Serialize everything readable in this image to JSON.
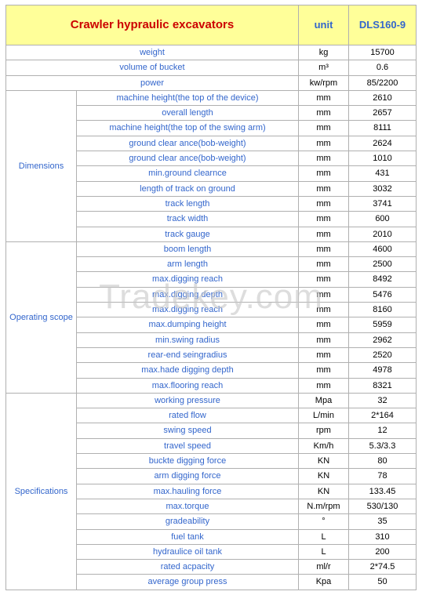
{
  "watermark": "Tradekey.com",
  "header": {
    "title": "Crawler hypraulic excavators",
    "unit_label": "unit",
    "model_label": "DLS160-9"
  },
  "colors": {
    "header_bg": "#ffff99",
    "header_title": "#cc0000",
    "header_small": "#3366cc",
    "param_text": "#3366cc",
    "value_text": "#000000",
    "border": "#b0b0b0",
    "watermark": "#c8c8c8"
  },
  "top_rows": [
    {
      "param": "weight",
      "unit": "kg",
      "value": "15700"
    },
    {
      "param": "volume of bucket",
      "unit": "m³",
      "value": "0.6"
    },
    {
      "param": "power",
      "unit": "kw/rpm",
      "value": "85/2200"
    }
  ],
  "groups": [
    {
      "name": "Dimensions",
      "rows": [
        {
          "param": "machine height(the top of the device)",
          "unit": "mm",
          "value": "2610"
        },
        {
          "param": "overall length",
          "unit": "mm",
          "value": "2657"
        },
        {
          "param": "machine height(the top of the swing arm)",
          "unit": "mm",
          "value": "8111"
        },
        {
          "param": "ground clear ance(bob-weight)",
          "unit": "mm",
          "value": "2624"
        },
        {
          "param": "ground clear ance(bob-weight)",
          "unit": "mm",
          "value": "1010"
        },
        {
          "param": "min.ground clearnce",
          "unit": "mm",
          "value": "431"
        },
        {
          "param": "length of track on ground",
          "unit": "mm",
          "value": "3032"
        },
        {
          "param": "track length",
          "unit": "mm",
          "value": "3741"
        },
        {
          "param": "track width",
          "unit": "mm",
          "value": "600"
        },
        {
          "param": "track gauge",
          "unit": "mm",
          "value": "2010"
        }
      ]
    },
    {
      "name": "Operating scope",
      "rows": [
        {
          "param": "boom length",
          "unit": "mm",
          "value": "4600"
        },
        {
          "param": "arm length",
          "unit": "mm",
          "value": "2500"
        },
        {
          "param": "max.digging reach",
          "unit": "mm",
          "value": "8492"
        },
        {
          "param": "max.digging depth",
          "unit": "mm",
          "value": "5476"
        },
        {
          "param": "max.digging reach",
          "unit": "mm",
          "value": "8160"
        },
        {
          "param": "max.dumping height",
          "unit": "mm",
          "value": "5959"
        },
        {
          "param": "min.swing radius",
          "unit": "mm",
          "value": "2962"
        },
        {
          "param": "rear-end seingradius",
          "unit": "mm",
          "value": "2520"
        },
        {
          "param": "max.hade digging depth",
          "unit": "mm",
          "value": "4978"
        },
        {
          "param": "max.flooring reach",
          "unit": "mm",
          "value": "8321"
        }
      ]
    },
    {
      "name": "Specifications",
      "rows": [
        {
          "param": "working pressure",
          "unit": "Mpa",
          "value": "32"
        },
        {
          "param": "rated flow",
          "unit": "L/min",
          "value": "2*164"
        },
        {
          "param": "swing speed",
          "unit": "rpm",
          "value": "12"
        },
        {
          "param": "travel speed",
          "unit": "Km/h",
          "value": "5.3/3.3"
        },
        {
          "param": "buckte digging force",
          "unit": "KN",
          "value": "80"
        },
        {
          "param": "arm digging force",
          "unit": "KN",
          "value": "78"
        },
        {
          "param": "max.hauling force",
          "unit": "KN",
          "value": "133.45"
        },
        {
          "param": "max.torque",
          "unit": "N.m/rpm",
          "value": "530/130"
        },
        {
          "param": "gradeability",
          "unit": "°",
          "value": "35"
        },
        {
          "param": "fuel tank",
          "unit": "L",
          "value": "310"
        },
        {
          "param": "hydraulice oil tank",
          "unit": "L",
          "value": "200"
        },
        {
          "param": "rated acpacity",
          "unit": "ml/r",
          "value": "2*74.5"
        },
        {
          "param": "average group press",
          "unit": "Kpa",
          "value": "50"
        }
      ]
    }
  ]
}
